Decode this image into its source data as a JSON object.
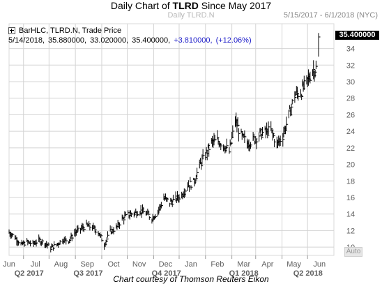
{
  "title": {
    "prefix": "Daily Chart of ",
    "ticker": "TLRD",
    "suffix": " Since May 2017"
  },
  "date_range": "5/15/2017 - 6/1/2018 (NYC)",
  "watermark": "Daily TLRD.N",
  "legend": {
    "series_label": "BarHLC, TLRD.N, Trade Price",
    "date": "5/14/2018,",
    "high": "35.880000,",
    "low": "33.020000,",
    "close": "35.400000,",
    "change": "+3.810000,",
    "change_pct": "(+12.06%)"
  },
  "last_price": "35.400000",
  "auto_button": "Auto",
  "credit": "Chart courtesy of Thomson Reuters Eikon",
  "colors": {
    "bars": "#000000",
    "grid": "#d4d4d4",
    "change_text": "#1a1ac8",
    "last_price_bg": "#000000",
    "axis_text": "#5e5e5e"
  },
  "chart_data": {
    "type": "bar",
    "subtype": "ohlc-hlc",
    "ticker": "TLRD.N",
    "y_ticks": [
      10,
      12,
      14,
      16,
      18,
      20,
      22,
      24,
      26,
      28,
      30,
      32,
      34
    ],
    "ylim": [
      9,
      37
    ],
    "y_axis_side": "right",
    "grid": true,
    "month_labels": [
      "Jun",
      "Jul",
      "Aug",
      "Sep",
      "Oct",
      "Nov",
      "Dec",
      "Jan",
      "Feb",
      "Mar",
      "Apr",
      "May",
      "Jun"
    ],
    "quarter_labels": [
      "Q2 2017",
      "Q3 2017",
      "Q4 2017",
      "Q1 2018",
      "Q2 2018"
    ],
    "xlim": [
      "2017-05-15",
      "2018-06-01"
    ],
    "anchors": [
      [
        "2017-05-15",
        11.8
      ],
      [
        "2017-05-22",
        11.2
      ],
      [
        "2017-05-29",
        10.3
      ],
      [
        "2017-06-05",
        10.6
      ],
      [
        "2017-06-12",
        10.4
      ],
      [
        "2017-06-19",
        10.8
      ],
      [
        "2017-06-26",
        10.5
      ],
      [
        "2017-07-03",
        9.9
      ],
      [
        "2017-07-10",
        10.3
      ],
      [
        "2017-07-17",
        10.9
      ],
      [
        "2017-07-24",
        10.8
      ],
      [
        "2017-07-31",
        11.7
      ],
      [
        "2017-08-07",
        12.2
      ],
      [
        "2017-08-14",
        12.6
      ],
      [
        "2017-08-21",
        12.4
      ],
      [
        "2017-08-28",
        11.8
      ],
      [
        "2017-09-04",
        10.3
      ],
      [
        "2017-09-11",
        11.9
      ],
      [
        "2017-09-18",
        12.3
      ],
      [
        "2017-09-25",
        13.4
      ],
      [
        "2017-10-02",
        13.9
      ],
      [
        "2017-10-09",
        14.1
      ],
      [
        "2017-10-16",
        14.4
      ],
      [
        "2017-10-23",
        14.1
      ],
      [
        "2017-10-30",
        13.5
      ],
      [
        "2017-11-06",
        14.3
      ],
      [
        "2017-11-13",
        15.9
      ],
      [
        "2017-11-20",
        15.4
      ],
      [
        "2017-11-27",
        15.8
      ],
      [
        "2017-12-04",
        16.3
      ],
      [
        "2017-12-11",
        17.5
      ],
      [
        "2017-12-18",
        17.8
      ],
      [
        "2017-12-25",
        19.8
      ],
      [
        "2018-01-01",
        21.2
      ],
      [
        "2018-01-08",
        22.6
      ],
      [
        "2018-01-15",
        22.9
      ],
      [
        "2018-01-22",
        22.4
      ],
      [
        "2018-01-29",
        21.5
      ],
      [
        "2018-02-05",
        25.3
      ],
      [
        "2018-02-12",
        23.4
      ],
      [
        "2018-02-19",
        22.6
      ],
      [
        "2018-02-26",
        22.9
      ],
      [
        "2018-03-05",
        23.6
      ],
      [
        "2018-03-12",
        23.9
      ],
      [
        "2018-03-19",
        24.1
      ],
      [
        "2018-03-26",
        22.4
      ],
      [
        "2018-04-02",
        23.5
      ],
      [
        "2018-04-09",
        25.9
      ],
      [
        "2018-04-16",
        28.4
      ],
      [
        "2018-04-23",
        28.7
      ],
      [
        "2018-04-30",
        29.9
      ],
      [
        "2018-05-07",
        31.4
      ],
      [
        "2018-05-11",
        31.6
      ],
      [
        "2018-05-14",
        35.4
      ]
    ],
    "last_bar": {
      "date": "2018-05-14",
      "high": 35.88,
      "low": 33.02,
      "close": 35.4,
      "change": 3.81,
      "change_pct": 12.06
    }
  }
}
